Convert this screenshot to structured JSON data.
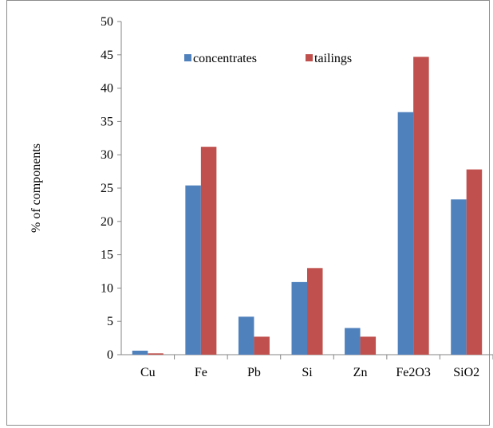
{
  "chart_data": {
    "type": "bar",
    "title": "",
    "xlabel": "",
    "ylabel": "% of components",
    "ylim": [
      0,
      50
    ],
    "yticks": [
      0,
      5,
      10,
      15,
      20,
      25,
      30,
      35,
      40,
      45,
      50
    ],
    "grid": false,
    "legend_position": "top",
    "categories": [
      "Cu",
      "Fe",
      "Pb",
      "Si",
      "Zn",
      "Fe2O3",
      "SiO2"
    ],
    "series": [
      {
        "name": "concentrates",
        "color": "#4f81bd",
        "values": [
          0.6,
          25.4,
          5.7,
          10.9,
          4.0,
          36.4,
          23.3
        ]
      },
      {
        "name": "tailings",
        "color": "#c0504d",
        "values": [
          0.2,
          31.2,
          2.7,
          13.0,
          2.7,
          44.7,
          27.8
        ]
      }
    ]
  }
}
